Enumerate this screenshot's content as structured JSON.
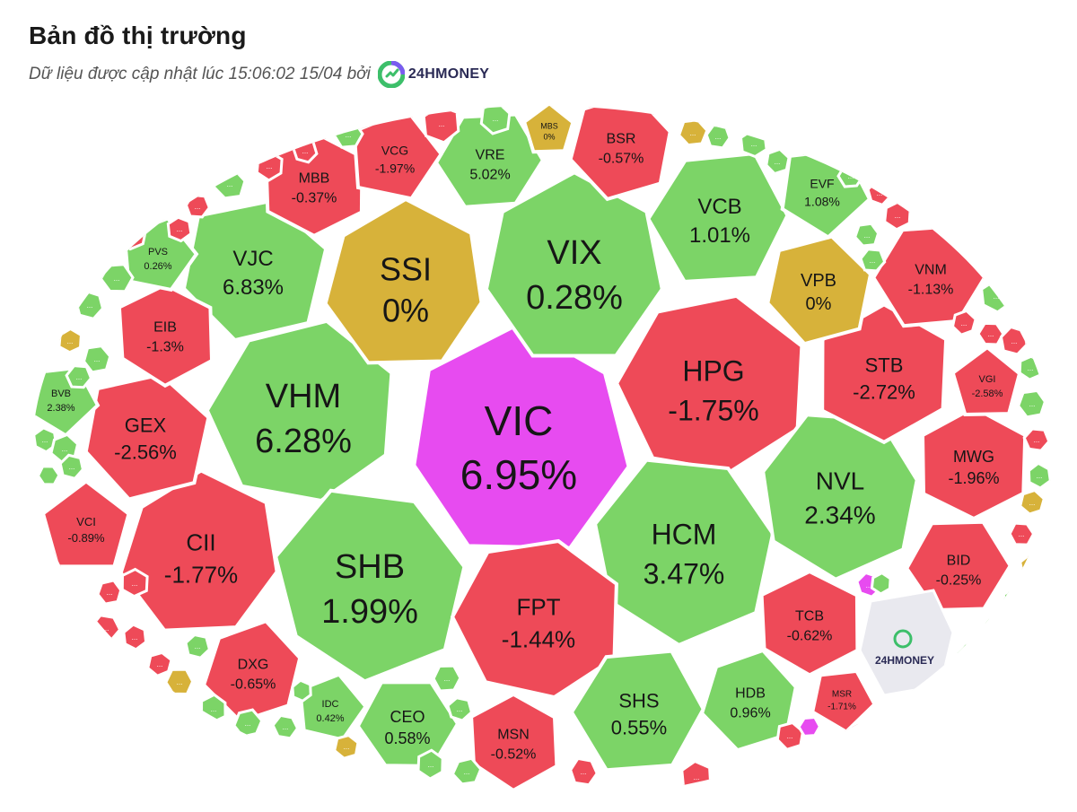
{
  "header": {
    "title": "Bản đồ thị trường",
    "subtitle": "Dữ liệu được cập nhật lúc 15:06:02 15/04 bởi",
    "brand": "24HMONEY"
  },
  "colors": {
    "up": "#7cd467",
    "down": "#ee4a58",
    "flat": "#d7b23a",
    "ceiling": "#e74bf0",
    "watermark": "#e9e9ef",
    "text": "#161616"
  },
  "watermark_label": "24HMONEY",
  "more_label": "...",
  "chart_data": {
    "type": "voronoi-treemap",
    "cells": [
      {
        "ticker": "VIC",
        "change": "6.95%",
        "status": "ceiling"
      },
      {
        "ticker": "VHM",
        "change": "6.28%",
        "status": "up"
      },
      {
        "ticker": "SHB",
        "change": "1.99%",
        "status": "up"
      },
      {
        "ticker": "VIX",
        "change": "0.28%",
        "status": "up"
      },
      {
        "ticker": "HPG",
        "change": "-1.75%",
        "status": "down"
      },
      {
        "ticker": "HCM",
        "change": "3.47%",
        "status": "up"
      },
      {
        "ticker": "SSI",
        "change": "0%",
        "status": "flat"
      },
      {
        "ticker": "FPT",
        "change": "-1.44%",
        "status": "down"
      },
      {
        "ticker": "NVL",
        "change": "2.34%",
        "status": "up"
      },
      {
        "ticker": "CII",
        "change": "-1.77%",
        "status": "down"
      },
      {
        "ticker": "VJC",
        "change": "6.83%",
        "status": "up"
      },
      {
        "ticker": "VCB",
        "change": "1.01%",
        "status": "up"
      },
      {
        "ticker": "STB",
        "change": "-2.72%",
        "status": "down"
      },
      {
        "ticker": "GEX",
        "change": "-2.56%",
        "status": "down"
      },
      {
        "ticker": "SHS",
        "change": "0.55%",
        "status": "up"
      },
      {
        "ticker": "MWG",
        "change": "-1.96%",
        "status": "down"
      },
      {
        "ticker": "VPB",
        "change": "0%",
        "status": "flat"
      },
      {
        "ticker": "VNM",
        "change": "-1.13%",
        "status": "down"
      },
      {
        "ticker": "MBB",
        "change": "-0.37%",
        "status": "down"
      },
      {
        "ticker": "BSR",
        "change": "-0.57%",
        "status": "down"
      },
      {
        "ticker": "VRE",
        "change": "5.02%",
        "status": "up"
      },
      {
        "ticker": "TCB",
        "change": "-0.62%",
        "status": "down"
      },
      {
        "ticker": "HDB",
        "change": "0.96%",
        "status": "up"
      },
      {
        "ticker": "BID",
        "change": "-0.25%",
        "status": "down"
      },
      {
        "ticker": "EIB",
        "change": "-1.3%",
        "status": "down"
      },
      {
        "ticker": "DXG",
        "change": "-0.65%",
        "status": "down"
      },
      {
        "ticker": "CEO",
        "change": "0.58%",
        "status": "up"
      },
      {
        "ticker": "MSN",
        "change": "-0.52%",
        "status": "down"
      },
      {
        "ticker": "VCG",
        "change": "-1.97%",
        "status": "down"
      },
      {
        "ticker": "EVF",
        "change": "1.08%",
        "status": "up"
      },
      {
        "ticker": "VCI",
        "change": "-0.89%",
        "status": "down"
      },
      {
        "ticker": "PVS",
        "change": "0.26%",
        "status": "up"
      },
      {
        "ticker": "BVB",
        "change": "2.38%",
        "status": "up"
      },
      {
        "ticker": "VGI",
        "change": "-2.58%",
        "status": "down"
      },
      {
        "ticker": "IDC",
        "change": "0.42%",
        "status": "up"
      },
      {
        "ticker": "MSR",
        "change": "-1.71%",
        "status": "down"
      },
      {
        "ticker": "MBS",
        "change": "0%",
        "status": "flat"
      }
    ]
  }
}
